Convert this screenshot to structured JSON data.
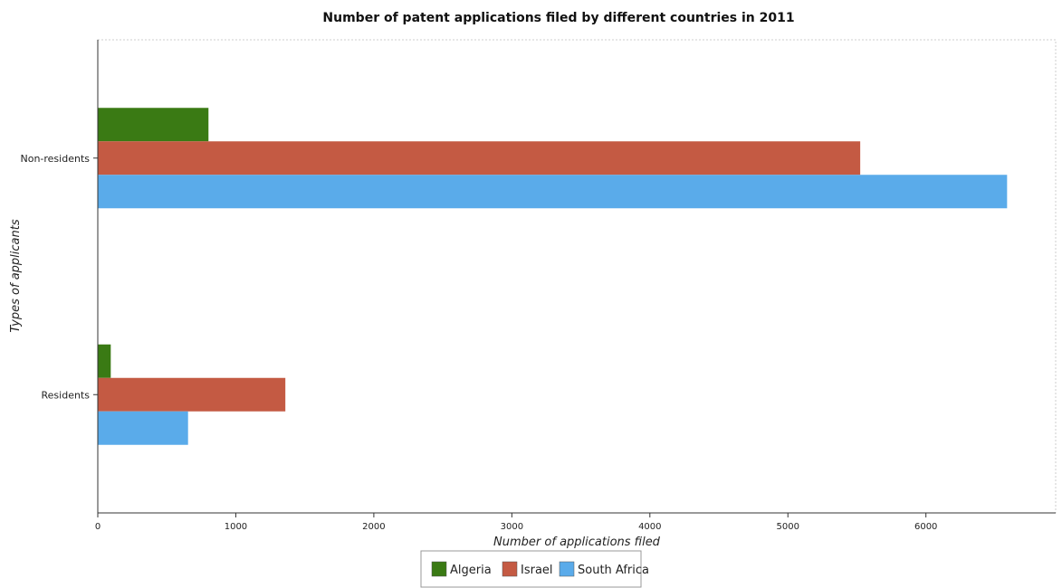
{
  "chart_data": {
    "type": "bar",
    "orientation": "horizontal",
    "title": "Number of patent applications filed by different countries in 2011",
    "xlabel": "Number of applications filed",
    "ylabel": "Types of applicants",
    "categories": [
      "Non-residents",
      "Residents"
    ],
    "series": [
      {
        "name": "Algeria",
        "color": "#3a7a14",
        "values": [
          802,
          94
        ]
      },
      {
        "name": "Israel",
        "color": "#c45a43",
        "values": [
          5524,
          1359
        ]
      },
      {
        "name": "South Africa",
        "color": "#5aabea",
        "values": [
          6588,
          654
        ]
      }
    ],
    "xlim": [
      0,
      6940
    ],
    "xticks": [
      0,
      1000,
      2000,
      3000,
      4000,
      5000,
      6000
    ],
    "xtick_labels": [
      "0",
      "1000",
      "2000",
      "3000",
      "4000",
      "5000",
      "6000"
    ],
    "grid": false,
    "legend_position": "bottom-center"
  }
}
